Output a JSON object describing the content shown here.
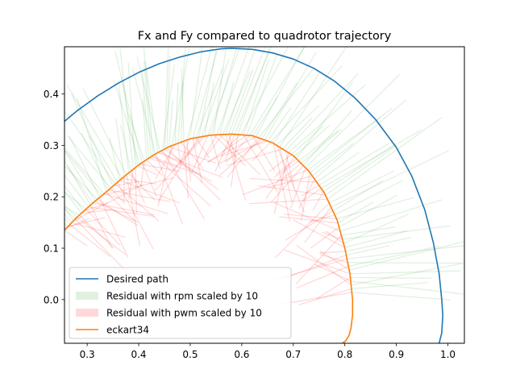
{
  "chart_data": {
    "type": "line",
    "title": "Fx and Fy compared to quadrotor trajectory",
    "xlabel": "",
    "ylabel": "",
    "xlim": [
      0.256,
      1.032
    ],
    "ylim": [
      -0.085,
      0.492
    ],
    "xticks": [
      0.3,
      0.4,
      0.5,
      0.6,
      0.7,
      0.8,
      0.9,
      1.0
    ],
    "xtick_labels": [
      "0.3",
      "0.4",
      "0.5",
      "0.6",
      "0.7",
      "0.8",
      "0.9",
      "1.0"
    ],
    "yticks": [
      0.0,
      0.1,
      0.2,
      0.3,
      0.4
    ],
    "ytick_labels": [
      "0.0",
      "0.1",
      "0.2",
      "0.3",
      "0.4"
    ],
    "grid": false,
    "legend_position": "lower-left",
    "series": [
      {
        "name": "Desired path",
        "color": "#1f77b4",
        "kind": "line",
        "x": [
          0.256,
          0.28,
          0.32,
          0.36,
          0.4,
          0.44,
          0.48,
          0.52,
          0.56,
          0.58,
          0.62,
          0.66,
          0.7,
          0.74,
          0.78,
          0.82,
          0.86,
          0.9,
          0.93,
          0.955,
          0.972,
          0.983,
          0.988,
          0.99,
          0.988,
          0.983
        ],
        "y": [
          0.347,
          0.367,
          0.396,
          0.421,
          0.442,
          0.459,
          0.472,
          0.482,
          0.488,
          0.489,
          0.487,
          0.48,
          0.468,
          0.45,
          0.425,
          0.392,
          0.35,
          0.296,
          0.24,
          0.175,
          0.11,
          0.05,
          0.0,
          -0.03,
          -0.065,
          -0.085
        ]
      },
      {
        "name": "Residual with rpm scaled by 10",
        "color": "#2ca02c",
        "kind": "residual-arrows",
        "alpha": 0.15
      },
      {
        "name": "Residual with pwm scaled by 10",
        "color": "#ff0000",
        "kind": "residual-arrows",
        "alpha": 0.15
      },
      {
        "name": "eckart34",
        "color": "#ff7f0e",
        "kind": "line",
        "x": [
          0.256,
          0.28,
          0.31,
          0.34,
          0.37,
          0.4,
          0.43,
          0.46,
          0.5,
          0.54,
          0.58,
          0.62,
          0.66,
          0.7,
          0.73,
          0.76,
          0.785,
          0.8,
          0.81,
          0.815,
          0.815,
          0.812,
          0.808,
          0.802,
          0.795
        ],
        "y": [
          0.135,
          0.16,
          0.187,
          0.212,
          0.238,
          0.262,
          0.282,
          0.298,
          0.313,
          0.32,
          0.322,
          0.319,
          0.305,
          0.28,
          0.25,
          0.208,
          0.155,
          0.1,
          0.05,
          0.0,
          -0.03,
          -0.055,
          -0.07,
          -0.08,
          -0.085
        ]
      }
    ]
  }
}
